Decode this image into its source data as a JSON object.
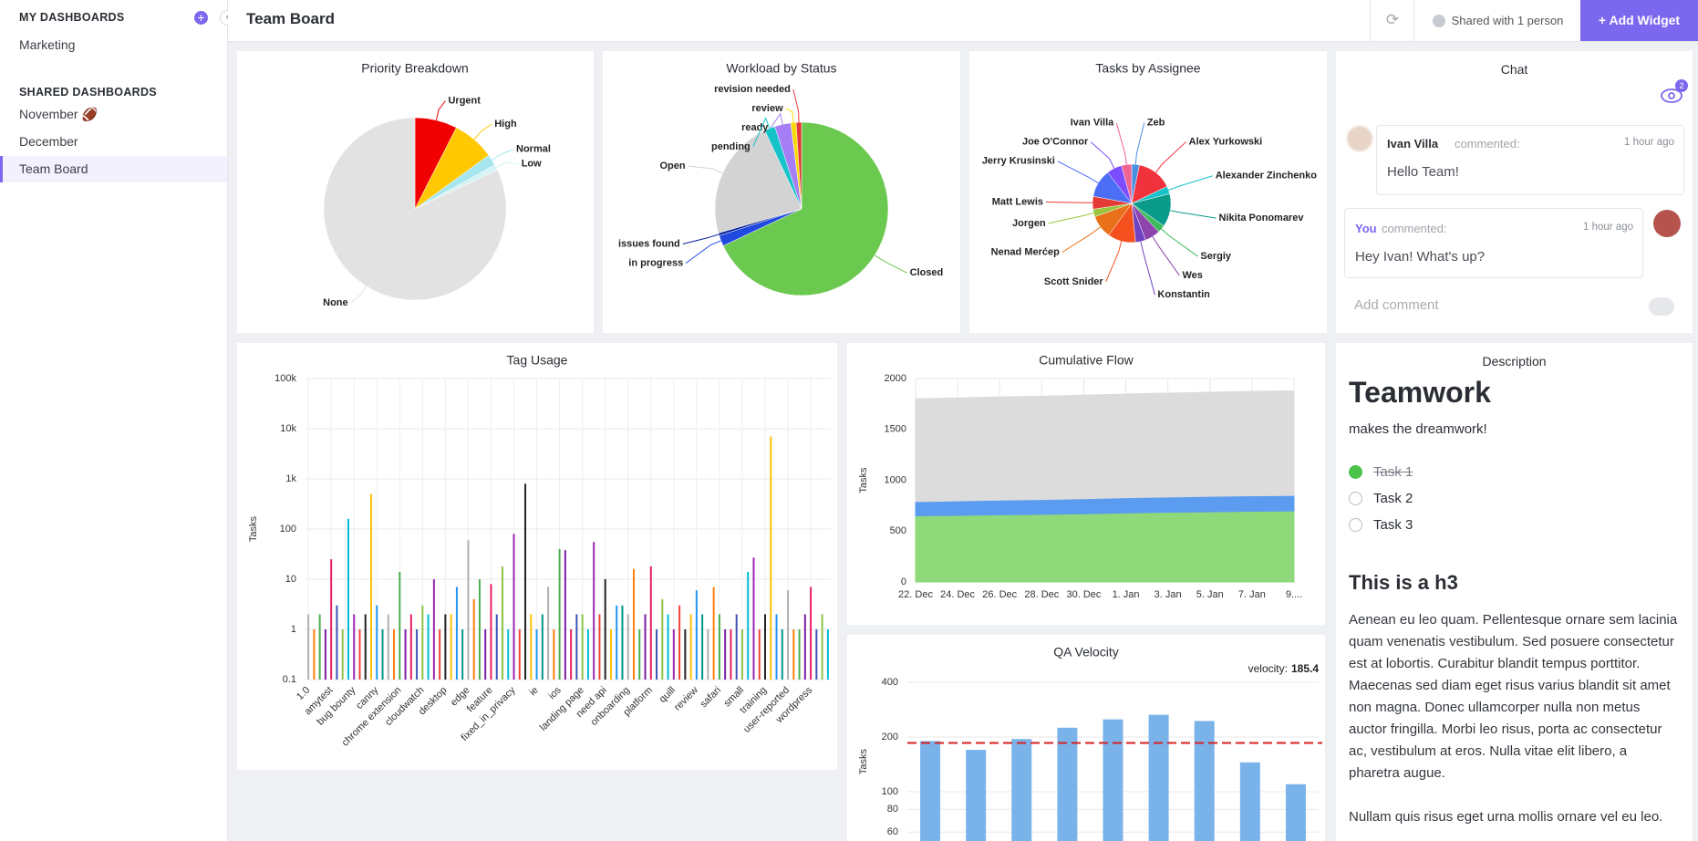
{
  "sidebar": {
    "my_heading": "MY DASHBOARDS",
    "my_items": [
      "Marketing"
    ],
    "shared_heading": "SHARED DASHBOARDS",
    "shared_items": [
      "November 🏈",
      "December",
      "Team Board"
    ]
  },
  "header": {
    "title": "Team Board",
    "shared": "Shared with 1 person",
    "add_widget": "+ Add Widget"
  },
  "chat": {
    "title": "Chat",
    "badge": 2,
    "messages": [
      {
        "author": "Ivan Villa",
        "action": "commented:",
        "time": "1 hour ago",
        "text": "Hello Team!"
      },
      {
        "author": "You",
        "action": "commented:",
        "time": "1 hour ago",
        "text": "Hey Ivan! What's up?"
      }
    ],
    "placeholder": "Add comment"
  },
  "description": {
    "title": "Description",
    "heading": "Teamwork",
    "subtitle": "makes the dreamwork!",
    "tasks": [
      {
        "label": "Task 1",
        "done": true
      },
      {
        "label": "Task 2",
        "done": false
      },
      {
        "label": "Task 3",
        "done": false
      }
    ],
    "h3": "This is a h3",
    "paragraphs": [
      "Aenean eu leo quam. Pellentesque ornare sem lacinia quam venenatis vestibulum. Sed posuere consectetur est at lobortis. Curabitur blandit tempus porttitor. Maecenas sed diam eget risus varius blandit sit amet non magna. Donec ullamcorper nulla non metus auctor fringilla. Morbi leo risus, porta ac consectetur ac, vestibulum at eros. Nulla vitae elit libero, a pharetra augue.",
      "Nullam quis risus eget urna mollis ornare vel eu leo."
    ]
  },
  "chart_data": [
    {
      "type": "pie",
      "title": "Priority Breakdown",
      "categories": [
        "Urgent",
        "High",
        "Normal",
        "Low",
        "None"
      ],
      "values": [
        7.5,
        7.5,
        2,
        1,
        82
      ],
      "colors": [
        "#f00000",
        "#ffc800",
        "#a6e6ee",
        "#d5f2f5",
        "#e2e2e2"
      ]
    },
    {
      "type": "pie",
      "title": "Workload by Status",
      "categories": [
        "Closed",
        "in progress",
        "issues found",
        "Open",
        "pending",
        "ready",
        "review",
        "revision needed"
      ],
      "values": [
        68,
        2,
        0.5,
        22.5,
        2,
        3,
        1,
        1
      ],
      "colors": [
        "#6bc950",
        "#2049e0",
        "#0b2399",
        "#d3d3d3",
        "#17c3c9",
        "#a57ef5",
        "#f9d900",
        "#e53935"
      ]
    },
    {
      "type": "pie",
      "title": "Tasks by Assignee",
      "categories": [
        "Zeb",
        "Alex Yurkowski",
        "Alexander Zinchenko",
        "Nikita Ponomarev",
        "Sergiy",
        "Wes",
        "Konstantin",
        "Scott Snider",
        "Nenad Merćep",
        "Jorgen",
        "Matt Lewis",
        "Jerry Krusinski",
        "Joe O'Connor",
        "Ivan Villa"
      ],
      "values": [
        3,
        14,
        3,
        13,
        3,
        6,
        4,
        11,
        9,
        3,
        5,
        11,
        6,
        4
      ],
      "colors": [
        "#4a90e2",
        "#f0323c",
        "#17c3c9",
        "#0a9b8a",
        "#3dbb5e",
        "#8e44ad",
        "#6f42c1",
        "#f4511e",
        "#e8711a",
        "#9bc53d",
        "#e53935",
        "#4c6ef5",
        "#7c4dff",
        "#f06292"
      ]
    },
    {
      "type": "bar",
      "title": "Tag Usage",
      "ylabel": "Tasks",
      "log_scale": true,
      "grid": true,
      "categories": [
        "1.0",
        null,
        null,
        null,
        "amytest",
        null,
        null,
        null,
        "bug bounty",
        null,
        null,
        null,
        "canny",
        null,
        null,
        null,
        "chrome extension",
        null,
        null,
        null,
        "cloudwatch",
        null,
        null,
        null,
        "desktop",
        null,
        null,
        null,
        "edge",
        null,
        null,
        null,
        "feature",
        null,
        null,
        null,
        "fixed_in_privacy",
        null,
        null,
        null,
        "ie",
        null,
        null,
        null,
        "ios",
        null,
        null,
        null,
        "landing page",
        null,
        null,
        null,
        "need api",
        null,
        null,
        null,
        "onboarding",
        null,
        null,
        null,
        "platform",
        null,
        null,
        null,
        "quill",
        null,
        null,
        null,
        "review",
        null,
        null,
        null,
        "safari",
        null,
        null,
        null,
        "small",
        null,
        null,
        null,
        "training",
        null,
        null,
        null,
        "user-reported",
        null,
        null,
        null,
        "wordpress",
        null,
        null,
        null
      ],
      "values": [
        2,
        1,
        2,
        1,
        25,
        3,
        1,
        160,
        2,
        1,
        2,
        500,
        3,
        1,
        2,
        1,
        14,
        1,
        2,
        1,
        3,
        2,
        10,
        1,
        2,
        2,
        7,
        1,
        60,
        4,
        10,
        1,
        8,
        2,
        18,
        1,
        80,
        1,
        800,
        2,
        1,
        2,
        7,
        1,
        40,
        38,
        1,
        2,
        2,
        1,
        55,
        2,
        10,
        1,
        3,
        3,
        2,
        16,
        1,
        2,
        18,
        1,
        4,
        2,
        1,
        3,
        1,
        2,
        6,
        2,
        1,
        7,
        2,
        1,
        1,
        2,
        1,
        14,
        27,
        1,
        2,
        7000,
        2,
        1,
        6,
        1,
        1,
        2,
        7,
        1,
        2,
        1
      ],
      "colors": [
        "#b0b0b0",
        "#ff7f0e",
        "#4caf50",
        "#7b1fa2",
        "#e91e63",
        "#3f51b5",
        "#8bc34a",
        "#00bcd4",
        "#9c27b0",
        "#f44336",
        "#222222",
        "#ffc107",
        "#2196f3",
        "#009688"
      ],
      "ylim": [
        0.1,
        100000
      ],
      "yticks": [
        0.1,
        1,
        10,
        100,
        {
          "value": 1000,
          "label": "1k"
        },
        {
          "value": 10000,
          "label": "10k"
        },
        {
          "value": 100000,
          "label": "100k"
        }
      ]
    },
    {
      "type": "area",
      "title": "Cumulative Flow",
      "ylabel": "Tasks",
      "stacked": true,
      "grid": true,
      "categories": [
        "22. Dec",
        "24. Dec",
        "26. Dec",
        "28. Dec",
        "30. Dec",
        "1. Jan",
        "3. Jan",
        "5. Jan",
        "7. Jan",
        "9...."
      ],
      "series": [
        {
          "color": "#8fd97a",
          "values": [
            650,
            655,
            660,
            665,
            670,
            678,
            685,
            690,
            695,
            698
          ]
        },
        {
          "color": "#5b9cf0",
          "values": [
            140,
            142,
            145,
            145,
            148,
            150,
            150,
            152,
            152,
            153
          ]
        },
        {
          "color": "#dcdcdc",
          "values": [
            1010,
            1012,
            1014,
            1016,
            1018,
            1020,
            1022,
            1024,
            1026,
            1028
          ]
        }
      ],
      "ylim": [
        0,
        2000
      ],
      "yticks": [
        0,
        500,
        1000,
        1500,
        2000
      ]
    },
    {
      "type": "bar",
      "title": "QA Velocity",
      "ylabel": "Tasks",
      "log_scale": true,
      "grid": true,
      "color": "#7ab3ea",
      "values": [
        190,
        170,
        195,
        225,
        250,
        265,
        245,
        145,
        110
      ],
      "velocity_label": "velocity:",
      "velocity": 185.4,
      "velocity_color": "#d62020",
      "ylim": [
        50,
        400
      ],
      "yticks": [
        60,
        80,
        100,
        200,
        400
      ]
    }
  ]
}
